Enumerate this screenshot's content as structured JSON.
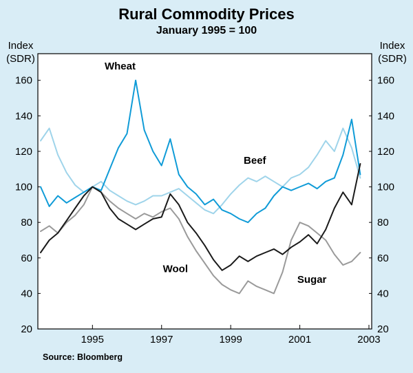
{
  "chart_data": {
    "type": "line",
    "title": "Rural Commodity Prices",
    "subtitle": "January 1995 = 100",
    "axis_unit": {
      "line1": "Index",
      "line2": "(SDR)"
    },
    "source": "Source: Bloomberg",
    "background": "#d9edf6",
    "plot_background": "#ffffff",
    "frame_color": "#000000",
    "xlim": [
      1993.42,
      2003.08
    ],
    "ylim": [
      20,
      175
    ],
    "yticks": [
      20,
      40,
      60,
      80,
      100,
      120,
      140,
      160
    ],
    "xticks": [
      1995,
      1997,
      1999,
      2001,
      2003
    ],
    "legend_position": "inline-labels",
    "grid": false,
    "x": [
      1993.5,
      1993.75,
      1994,
      1994.25,
      1994.5,
      1994.75,
      1995,
      1995.25,
      1995.5,
      1995.75,
      1996,
      1996.25,
      1996.5,
      1996.75,
      1997,
      1997.25,
      1997.5,
      1997.75,
      1998,
      1998.25,
      1998.5,
      1998.75,
      1999,
      1999.25,
      1999.5,
      1999.75,
      2000,
      2000.25,
      2000.5,
      2000.75,
      2001,
      2001.25,
      2001.5,
      2001.75,
      2002,
      2002.25,
      2002.5,
      2002.75
    ],
    "series": [
      {
        "name": "Beef",
        "color": "#9fd4ea",
        "label_x": 1999.7,
        "label_y": 113,
        "values": [
          126,
          133,
          118,
          108,
          101,
          97,
          100,
          103,
          98,
          95,
          92,
          90,
          92,
          95,
          95,
          97,
          99,
          95,
          91,
          87,
          85,
          90,
          96,
          101,
          105,
          103,
          106,
          103,
          100,
          105,
          107,
          111,
          118,
          126,
          120,
          133,
          122,
          105
        ]
      },
      {
        "name": "Sugar",
        "color": "#9a9a9a",
        "label_x": 2001.35,
        "label_y": 46,
        "values": [
          75,
          78,
          74,
          80,
          84,
          90,
          100,
          97,
          92,
          88,
          85,
          82,
          85,
          83,
          86,
          88,
          82,
          72,
          64,
          57,
          50,
          45,
          42,
          40,
          47,
          44,
          42,
          40,
          52,
          70,
          80,
          78,
          74,
          70,
          62,
          56,
          58,
          63
        ]
      },
      {
        "name": "Wheat",
        "color": "#0f9bd7",
        "label_x": 1995.8,
        "label_y": 166,
        "values": [
          100,
          89,
          95,
          91,
          94,
          97,
          100,
          98,
          110,
          122,
          130,
          160,
          132,
          120,
          112,
          127,
          107,
          100,
          96,
          90,
          93,
          87,
          85,
          82,
          80,
          85,
          88,
          95,
          100,
          98,
          100,
          102,
          99,
          103,
          105,
          118,
          138,
          107
        ]
      },
      {
        "name": "Wool",
        "color": "#1a1a1a",
        "label_x": 1997.4,
        "label_y": 52,
        "values": [
          63,
          70,
          74,
          81,
          88,
          95,
          100,
          97,
          88,
          82,
          79,
          76,
          79,
          82,
          83,
          96,
          90,
          80,
          74,
          67,
          59,
          53,
          56,
          61,
          58,
          61,
          63,
          65,
          62,
          66,
          69,
          73,
          68,
          76,
          88,
          97,
          90,
          113
        ]
      }
    ]
  }
}
